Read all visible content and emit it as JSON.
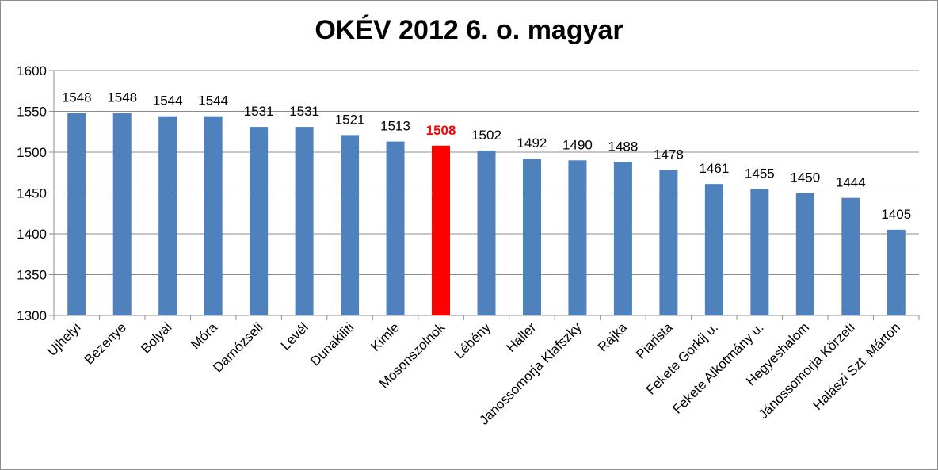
{
  "chart_data": {
    "type": "bar",
    "title": "OKÉV 2012 6. o. magyar",
    "xlabel": "",
    "ylabel": "",
    "ylim": [
      1300,
      1600
    ],
    "yticks": [
      1300,
      1350,
      1400,
      1450,
      1500,
      1550,
      1600
    ],
    "grid": true,
    "legend": "none",
    "bar_color": "#4f81bd",
    "highlight_color": "#ff0000",
    "highlight_category": "Mosonszolnok",
    "categories": [
      "Ujhelyi",
      "Bezenye",
      "Bolyai",
      "Móra",
      "Darnózseli",
      "Levél",
      "Dunakiliti",
      "Kimle",
      "Mosonszolnok",
      "Lébény",
      "Haller",
      "Jánossomorja Klafszky",
      "Rajka",
      "Piarista",
      "Fekete Gorkij u.",
      "Fekete Alkotmány u.",
      "Hegyeshalom",
      "Jánossomorja Körzeti",
      "Halászi Szt. Márton"
    ],
    "values": [
      1548,
      1548,
      1544,
      1544,
      1531,
      1531,
      1521,
      1513,
      1508,
      1502,
      1492,
      1490,
      1488,
      1478,
      1461,
      1455,
      1450,
      1444,
      1405
    ]
  }
}
